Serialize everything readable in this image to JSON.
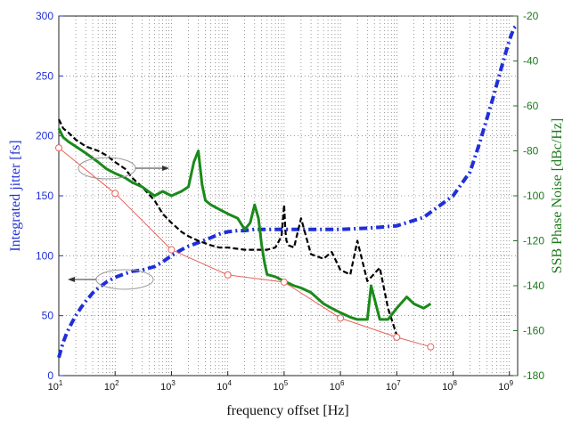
{
  "chart_data": {
    "type": "line",
    "xlabel": "frequency offset [Hz]",
    "ylabel_left": "Integrated jitter [fs]",
    "ylabel_right": "SSB Phase Noise [dBc/Hz]",
    "xscale": "log",
    "xlim": [
      10,
      1400000000
    ],
    "ylim_left": [
      0,
      300
    ],
    "ylim_right": [
      -180,
      -20
    ],
    "grid": true,
    "colors": {
      "left_axis": "#1f2fd8",
      "right_axis": "#1c7a1c",
      "black_series": "#000000",
      "green_series": "#1a8a1a",
      "red_series": "#e8605a",
      "annotation": "#999999"
    },
    "x_tick_labels": [
      "10^1",
      "10^2",
      "10^3",
      "10^4",
      "10^5",
      "10^6",
      "10^7",
      "10^8",
      "10^9"
    ],
    "y_tick_labels_left": [
      "0",
      "50",
      "100",
      "150",
      "200",
      "250",
      "300"
    ],
    "y_tick_labels_right": [
      "-180",
      "-160",
      "-140",
      "-120",
      "-100",
      "-80",
      "-60",
      "-40",
      "-20"
    ],
    "series": [
      {
        "axis": "left",
        "style": "blue-dashdot",
        "x": [
          10,
          11,
          12,
          14,
          17,
          20,
          25,
          30,
          40,
          50,
          70,
          100,
          150,
          200,
          300,
          500,
          700,
          1000,
          1500,
          2000,
          3000,
          5000,
          7000,
          10000,
          15000,
          20000,
          30000,
          50000,
          100000,
          300000,
          1000000,
          3000000,
          10000000,
          30000000,
          100000000,
          200000000,
          300000000,
          500000000,
          700000000,
          1000000000,
          1200000000,
          1400000000
        ],
        "y": [
          15,
          22,
          28,
          36,
          44,
          50,
          57,
          62,
          69,
          73,
          78,
          82,
          85,
          87,
          88,
          91,
          95,
          100,
          105,
          108,
          111,
          115,
          118,
          120,
          121,
          121,
          122,
          122,
          122,
          122,
          122,
          123,
          125,
          132,
          150,
          170,
          195,
          230,
          255,
          280,
          290,
          293
        ]
      },
      {
        "axis": "right",
        "style": "black-dashed",
        "x": [
          10,
          12,
          15,
          20,
          30,
          50,
          70,
          100,
          150,
          200,
          300,
          500,
          700,
          1000,
          1500,
          2000,
          3000,
          5000,
          7000,
          10000,
          20000,
          30000,
          50000,
          70000,
          90000,
          100000,
          105000,
          110000,
          120000,
          150000,
          200000,
          300000,
          500000,
          700000,
          1000000,
          1500000,
          2000000,
          3000000,
          5000000,
          7000000,
          10000000
        ],
        "y": [
          -66,
          -70,
          -72,
          -75,
          -78,
          -80,
          -82,
          -85,
          -88,
          -92,
          -96,
          -102,
          -108,
          -112,
          -116,
          -118,
          -120,
          -122,
          -123,
          -123,
          -124,
          -124,
          -124,
          -123,
          -118,
          -104,
          -115,
          -120,
          -122,
          -123,
          -110,
          -126,
          -128,
          -125,
          -133,
          -135,
          -120,
          -138,
          -132,
          -150,
          -162
        ]
      },
      {
        "axis": "right",
        "style": "green-solid",
        "x": [
          10,
          12,
          15,
          20,
          30,
          50,
          70,
          100,
          150,
          200,
          300,
          500,
          700,
          1000,
          1500,
          2000,
          2500,
          3000,
          3500,
          4000,
          5000,
          7000,
          10000,
          15000,
          20000,
          25000,
          30000,
          35000,
          40000,
          45000,
          50000,
          70000,
          100000,
          150000,
          200000,
          300000,
          500000,
          700000,
          1000000,
          1500000,
          2000000,
          3000000,
          3500000,
          5000000,
          7000000,
          10000000,
          15000000,
          20000000,
          30000000,
          40000000
        ],
        "y": [
          -70,
          -74,
          -76,
          -78,
          -81,
          -85,
          -88,
          -90,
          -92,
          -94,
          -96,
          -100,
          -98,
          -100,
          -98,
          -96,
          -85,
          -80,
          -95,
          -102,
          -104,
          -106,
          -108,
          -110,
          -115,
          -112,
          -104,
          -110,
          -122,
          -130,
          -135,
          -136,
          -138,
          -140,
          -141,
          -143,
          -148,
          -150,
          -152,
          -154,
          -155,
          -155,
          -140,
          -155,
          -155,
          -150,
          -145,
          -148,
          -150,
          -148
        ]
      },
      {
        "axis": "left",
        "style": "red-solid-circle-markers",
        "x": [
          10,
          100,
          1000,
          10000,
          100000,
          1000000,
          10000000,
          40000000
        ],
        "y": [
          190,
          152,
          105,
          84,
          78,
          48,
          32,
          24
        ]
      }
    ]
  }
}
